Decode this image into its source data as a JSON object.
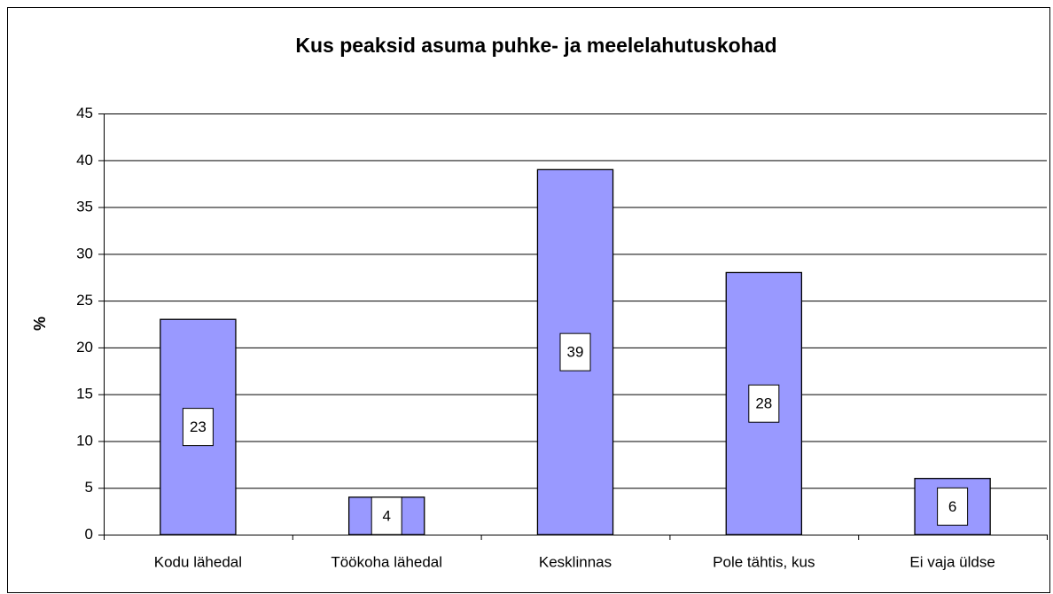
{
  "chart_data": {
    "type": "bar",
    "title": "Kus peaksid asuma puhke- ja meelelahutuskohad",
    "ylabel": "%",
    "categories": [
      "Kodu lähedal",
      "Töökoha lähedal",
      "Kesklinnas",
      "Pole tähtis, kus",
      "Ei vaja üldse"
    ],
    "values": [
      23,
      4,
      39,
      28,
      6
    ],
    "color": "#9999ff",
    "ylim": [
      0,
      45
    ],
    "yticks": [
      0,
      5,
      10,
      15,
      20,
      25,
      30,
      35,
      40,
      45
    ],
    "grid": true
  }
}
